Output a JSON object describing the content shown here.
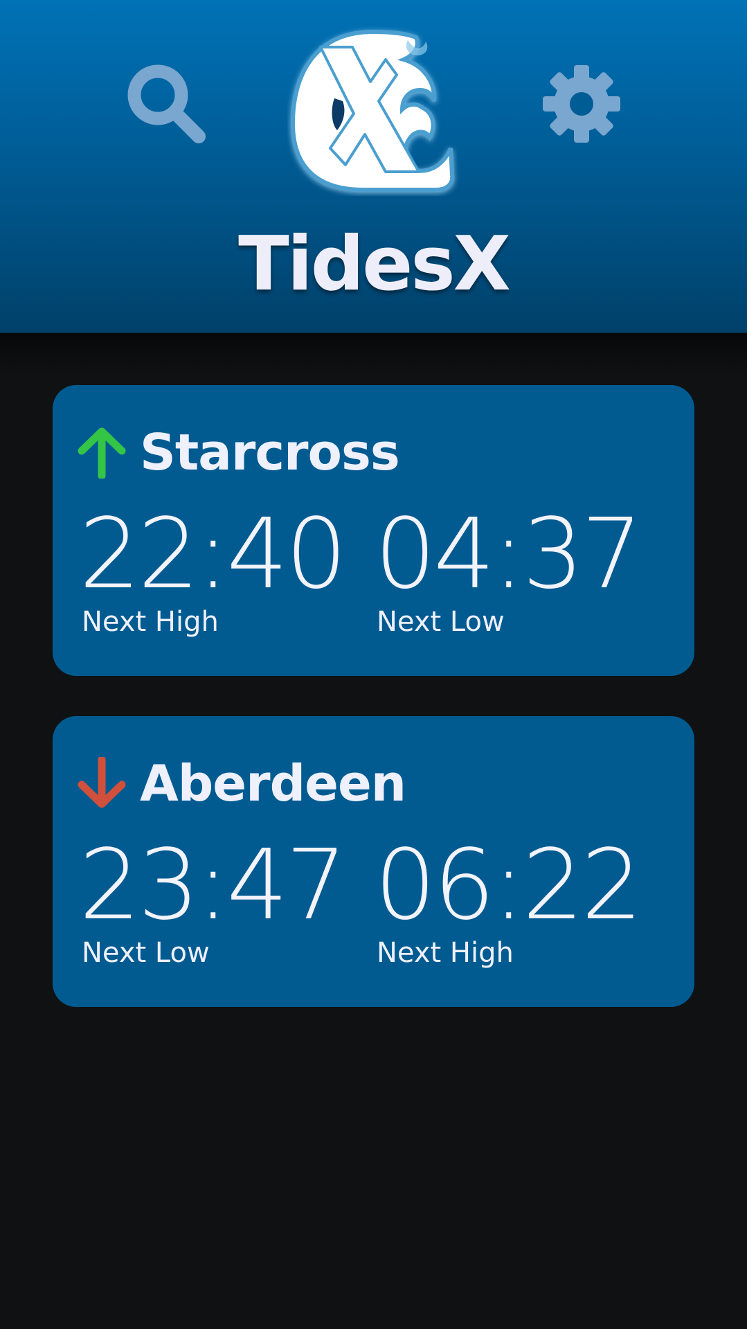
{
  "app": {
    "title": "TidesX"
  },
  "header": {
    "search_icon": "search-icon",
    "settings_icon": "gear-icon",
    "logo": "tidesx-wave-logo"
  },
  "colors": {
    "header_top": "#0072b6",
    "header_bottom": "#00416a",
    "card_bg": "#015b91",
    "page_bg": "#0f1113",
    "rising": "#34c547",
    "falling": "#d0503c",
    "icon_tint": "#7aa7cf"
  },
  "locations": [
    {
      "name": "Starcross",
      "trend_icon": "arrow-up-icon",
      "trend": "rising",
      "first_time": "22:40",
      "first_label": "Next High",
      "second_time": "04:37",
      "second_label": "Next Low"
    },
    {
      "name": "Aberdeen",
      "trend_icon": "arrow-down-icon",
      "trend": "falling",
      "first_time": "23:47",
      "first_label": "Next Low",
      "second_time": "06:22",
      "second_label": "Next High"
    }
  ]
}
